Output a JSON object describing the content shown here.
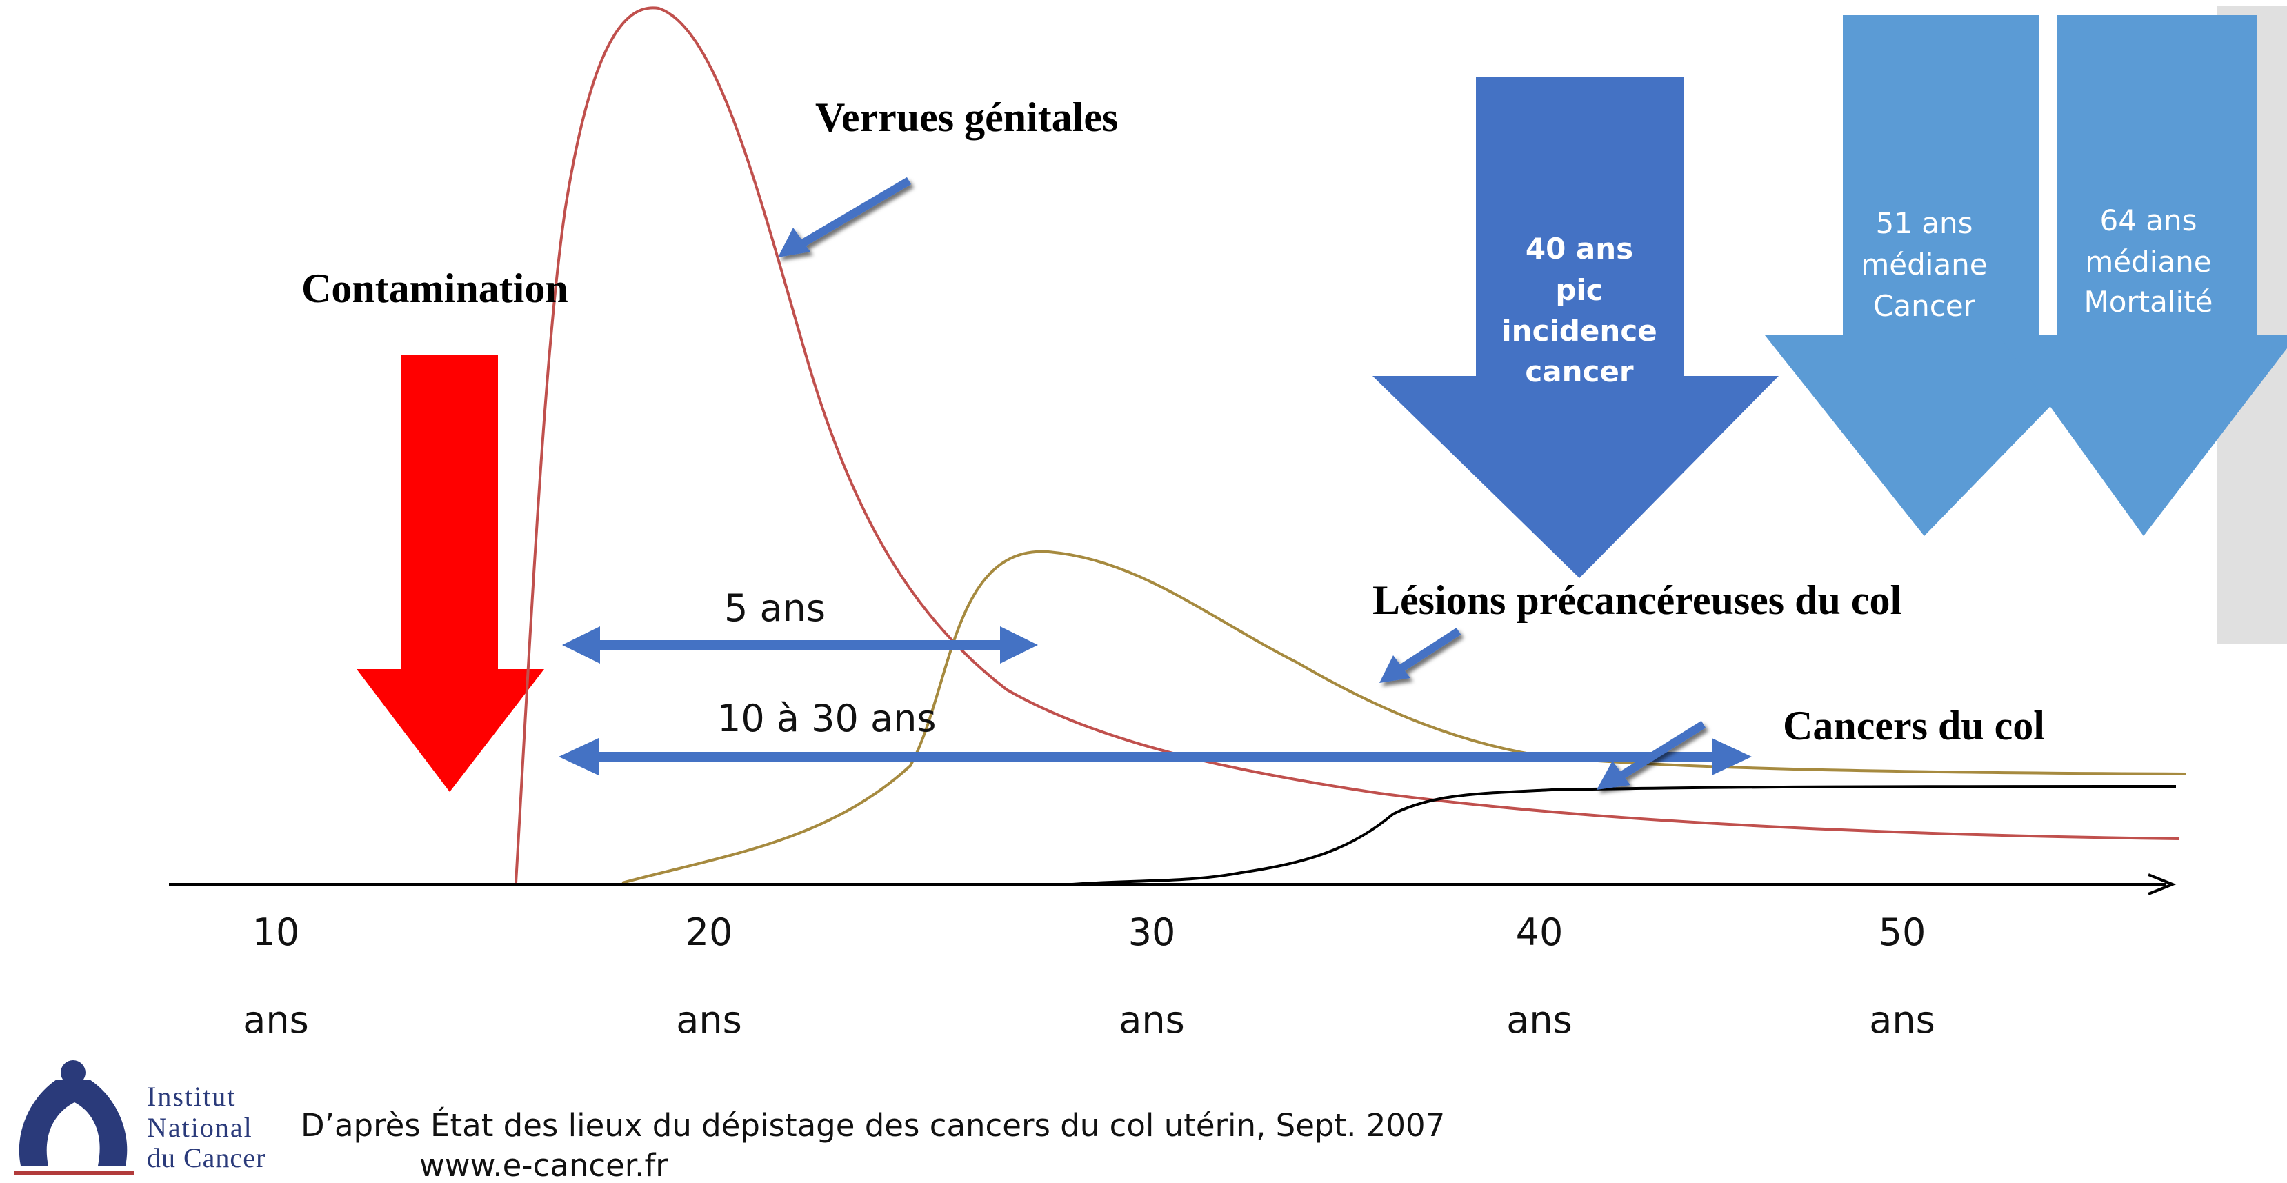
{
  "labels": {
    "contamination": "Contamination",
    "verrues": "Verrues génitales",
    "lesions": "Lésions précancéreuses du col",
    "cancers": "Cancers du col",
    "span_5": "5 ans",
    "span_10_30": "10 à 30 ans"
  },
  "milestones": [
    {
      "lines": [
        "40 ans",
        "pic",
        "incidence",
        "cancer"
      ],
      "color": "#4472c4",
      "bold": true
    },
    {
      "lines": [
        "51 ans",
        "médiane",
        "Cancer"
      ],
      "color": "#5b9bd5",
      "bold": false
    },
    {
      "lines": [
        "64 ans",
        "médiane",
        "Mortalité"
      ],
      "color": "#5b9bd5",
      "bold": false
    }
  ],
  "axis": {
    "ticks": [
      {
        "value": "10",
        "unit": "ans"
      },
      {
        "value": "20",
        "unit": "ans"
      },
      {
        "value": "30",
        "unit": "ans"
      },
      {
        "value": "40",
        "unit": "ans"
      },
      {
        "value": "50",
        "unit": "ans"
      }
    ]
  },
  "colors": {
    "contamination_arrow": "#ff0000",
    "span_arrows": "#4472c4",
    "verrues_curve": "#c0504d",
    "lesions_curve": "#a68a3f",
    "cancers_curve": "#000000",
    "gray_band": "#e0e0e0"
  },
  "logo": {
    "line1": "Institut",
    "line2": "National",
    "line3": "du Cancer"
  },
  "source": {
    "citation": "D’après État des lieux du dépistage des cancers du col utérin, Sept. 2007",
    "url": "www.e-cancer.fr"
  }
}
